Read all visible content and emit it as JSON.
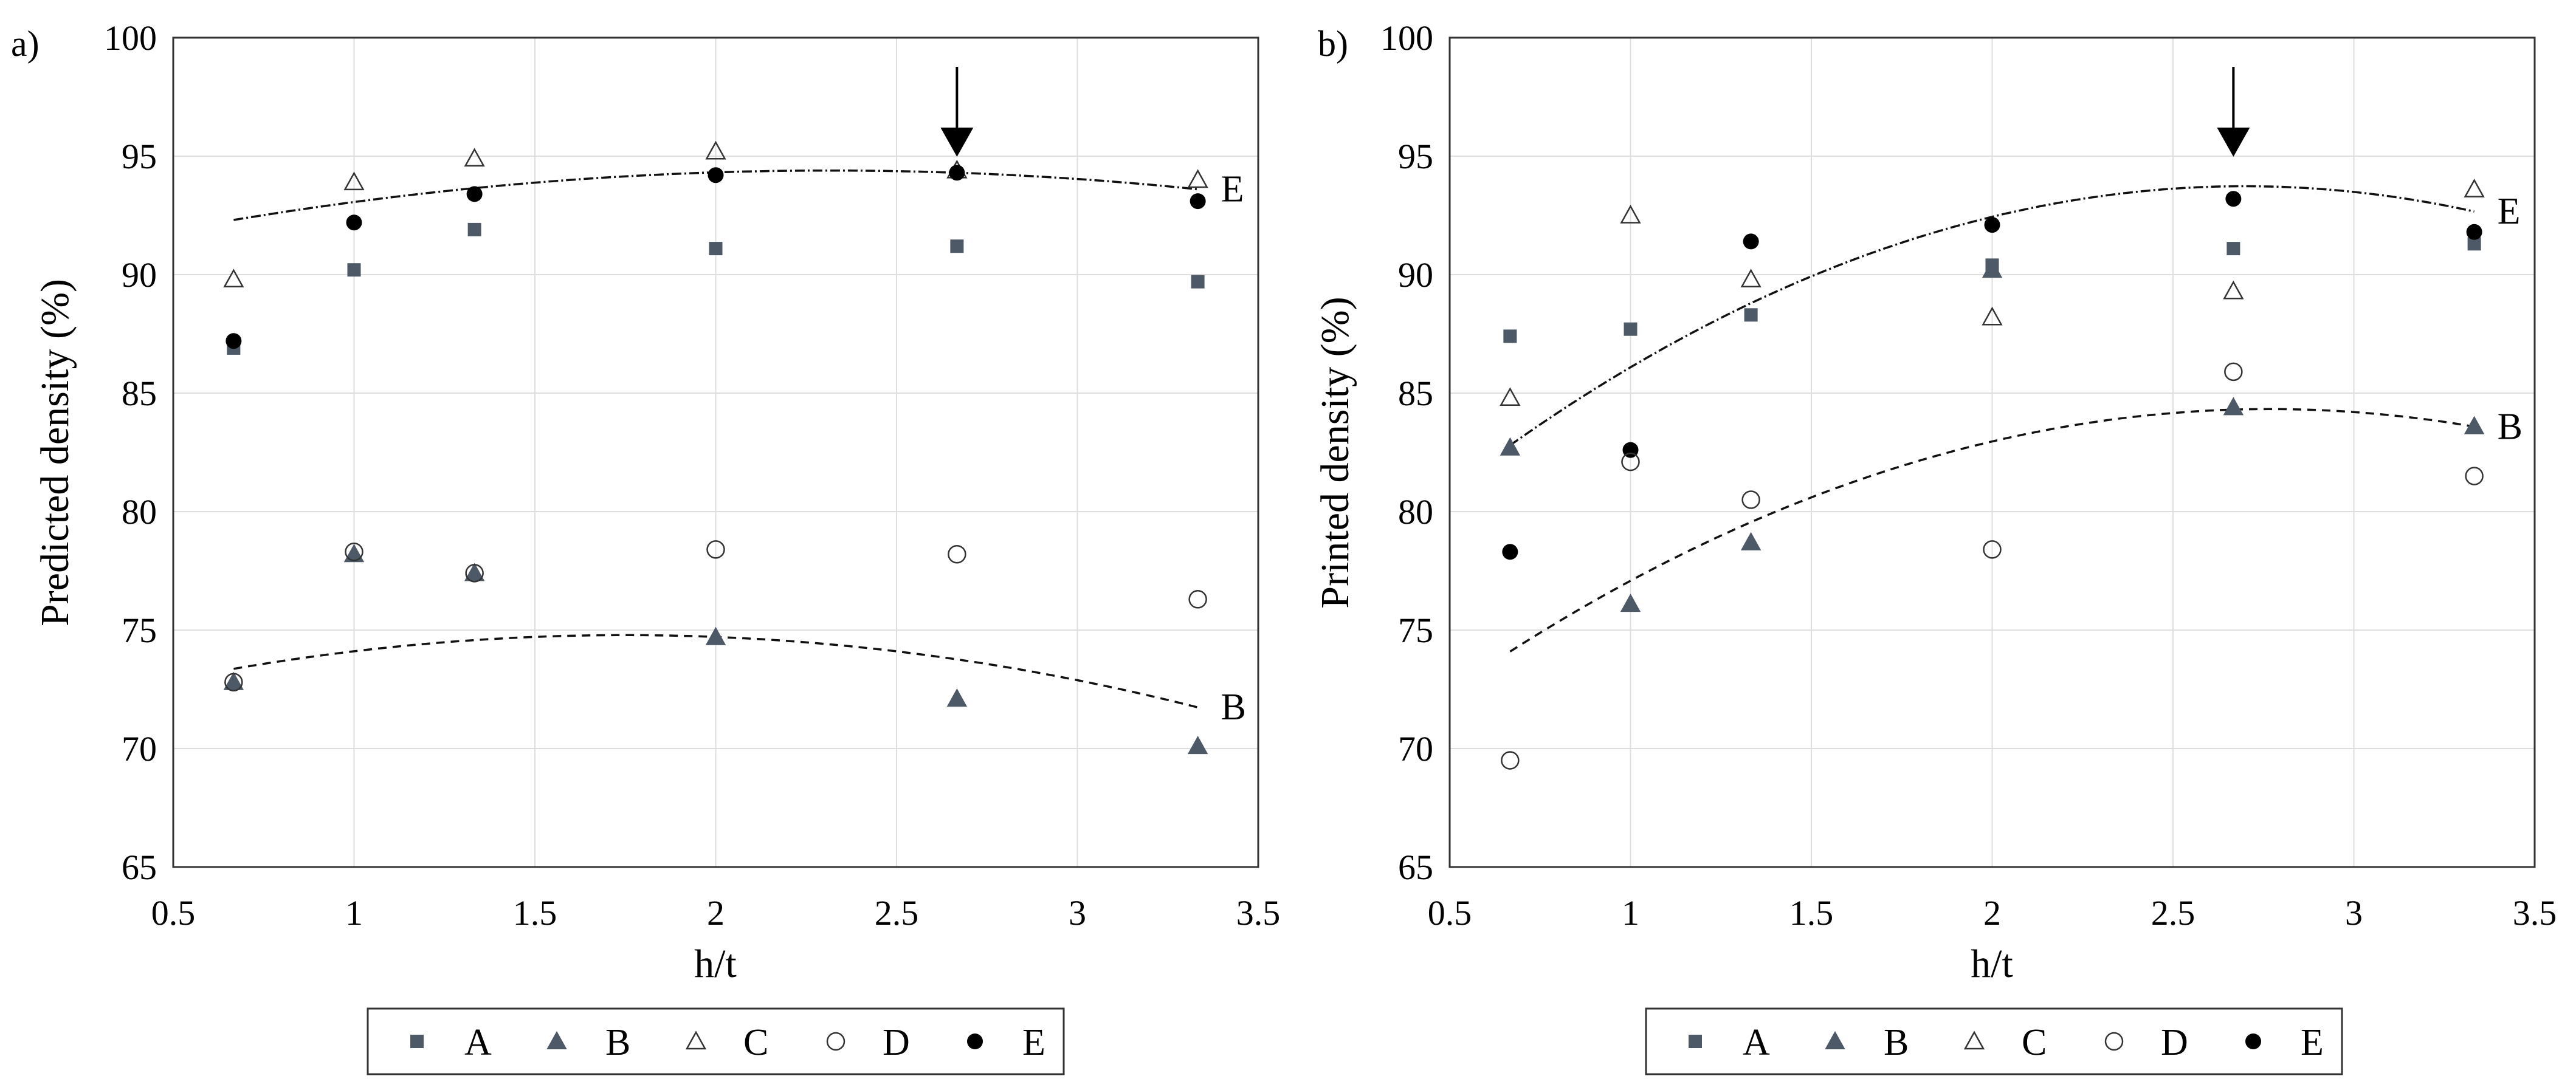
{
  "colors": {
    "dark_marker": "#4d5966",
    "black": "#000000",
    "grid": "#dedede",
    "axis": "#333333"
  },
  "legend_icons": {
    "A": "filled-square",
    "B": "filled-triangle",
    "C": "open-triangle",
    "D": "open-circle",
    "E": "filled-circle"
  },
  "chart_data": [
    {
      "type": "scatter",
      "panel_label": "a)",
      "xlabel": "h/t",
      "ylabel": "Predicted density (%)",
      "xlim": [
        0.5,
        3.5
      ],
      "ylim": [
        65,
        100
      ],
      "xticks": [
        0.5,
        1,
        1.5,
        2,
        2.5,
        3,
        3.5
      ],
      "xtick_labels": [
        "0.5",
        "1",
        "1.5",
        "2",
        "2.5",
        "3",
        "3.5"
      ],
      "yticks": [
        65,
        70,
        75,
        80,
        85,
        90,
        95,
        100
      ],
      "ytick_labels": [
        "65",
        "70",
        "75",
        "80",
        "85",
        "90",
        "95",
        "100"
      ],
      "grid": true,
      "series": [
        {
          "name": "A",
          "x": [
            0.667,
            1,
            1.333,
            2,
            2.667,
            3.333
          ],
          "y": [
            86.9,
            90.2,
            91.9,
            91.1,
            91.2,
            89.7
          ]
        },
        {
          "name": "B",
          "x": [
            0.667,
            1,
            1.333,
            2,
            2.667,
            3.333
          ],
          "y": [
            72.8,
            78.2,
            77.4,
            74.7,
            72.1,
            70.1
          ]
        },
        {
          "name": "C",
          "x": [
            0.667,
            1,
            1.333,
            2,
            2.667,
            3.333
          ],
          "y": [
            89.8,
            93.9,
            94.9,
            95.2,
            94.4,
            94.0
          ]
        },
        {
          "name": "D",
          "x": [
            0.667,
            1,
            1.333,
            2,
            2.667,
            3.333
          ],
          "y": [
            72.8,
            78.3,
            77.4,
            78.4,
            78.2,
            76.3
          ]
        },
        {
          "name": "E",
          "x": [
            0.667,
            1,
            1.333,
            2,
            2.667,
            3.333
          ],
          "y": [
            87.2,
            92.2,
            93.4,
            94.2,
            94.3,
            93.1
          ]
        }
      ],
      "fits": [
        {
          "series": "E",
          "label": "E",
          "style": "dash-dot",
          "x_range": [
            0.667,
            3.333
          ],
          "coeffs": [
            -0.766,
            3.55,
            90.28
          ]
        },
        {
          "series": "B",
          "label": "B",
          "style": "dashed",
          "x_range": [
            0.667,
            3.333
          ],
          "coeffs": [
            -1.215,
            4.25,
            71.07
          ]
        }
      ],
      "arrow_x": 2.667
    },
    {
      "type": "scatter",
      "panel_label": "b)",
      "xlabel": "h/t",
      "ylabel": "Printed density (%)",
      "xlim": [
        0.5,
        3.5
      ],
      "ylim": [
        65,
        100
      ],
      "xticks": [
        0.5,
        1,
        1.5,
        2,
        2.5,
        3,
        3.5
      ],
      "xtick_labels": [
        "0.5",
        "1",
        "1.5",
        "2",
        "2.5",
        "3",
        "3.5"
      ],
      "yticks": [
        65,
        70,
        75,
        80,
        85,
        90,
        95,
        100
      ],
      "ytick_labels": [
        "65",
        "70",
        "75",
        "80",
        "85",
        "90",
        "95",
        "100"
      ],
      "grid": true,
      "series": [
        {
          "name": "A",
          "x": [
            0.667,
            1,
            1.333,
            2,
            2.667,
            3.333
          ],
          "y": [
            87.4,
            87.7,
            88.3,
            90.4,
            91.1,
            91.3
          ]
        },
        {
          "name": "B",
          "x": [
            0.667,
            1,
            1.333,
            2,
            2.667,
            3.333
          ],
          "y": [
            82.7,
            76.1,
            78.7,
            90.2,
            84.4,
            83.6
          ]
        },
        {
          "name": "C",
          "x": [
            0.667,
            1,
            1.333,
            2,
            2.667,
            3.333
          ],
          "y": [
            84.8,
            92.5,
            89.8,
            88.2,
            89.3,
            93.6
          ]
        },
        {
          "name": "D",
          "x": [
            0.667,
            1,
            1.333,
            2,
            2.667,
            3.333
          ],
          "y": [
            69.5,
            82.1,
            80.5,
            78.4,
            85.9,
            81.5
          ]
        },
        {
          "name": "E",
          "x": [
            0.667,
            1,
            1.333,
            2,
            2.667,
            3.333
          ],
          "y": [
            78.3,
            82.6,
            91.4,
            92.1,
            93.2,
            91.8
          ]
        }
      ],
      "fits": [
        {
          "series": "E",
          "label": "E",
          "style": "dash-dot",
          "x_range": [
            0.667,
            3.333
          ],
          "coeffs": [
            -2.65,
            14.3,
            74.44
          ]
        },
        {
          "series": "B",
          "label": "B",
          "style": "dashed",
          "x_range": [
            0.667,
            3.333
          ],
          "coeffs": [
            -2.32,
            12.84,
            66.56
          ]
        }
      ],
      "arrow_x": 2.667
    }
  ]
}
